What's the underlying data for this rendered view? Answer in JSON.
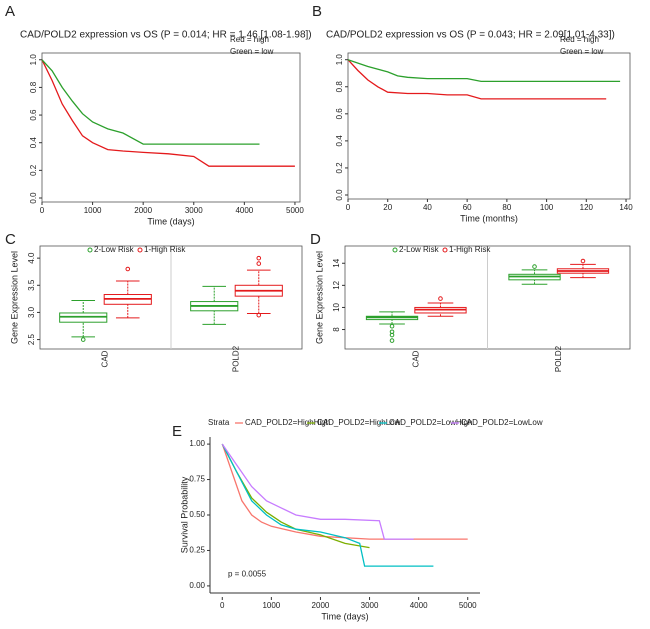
{
  "chart_data": [
    {
      "type": "line",
      "panel": "A",
      "title": "CAD/POLD2 expression vs OS (P = 0.014; HR = 1.46 [1.08-1.98])",
      "x_label": "Time (days)",
      "xlim": [
        0,
        5100
      ],
      "xticks": [
        0,
        1000,
        2000,
        3000,
        4000,
        5000
      ],
      "ylim": [
        0,
        1.02
      ],
      "yticks": [
        {
          "value": 0,
          "label": "0.0"
        },
        0.2,
        0.4,
        0.6,
        0.8,
        {
          "value": 1,
          "label": "1.0"
        }
      ],
      "legend": "top-right",
      "legend_style": "text",
      "series": [
        {
          "name": "Red = high",
          "color": "#e41a1c",
          "x": [
            0,
            200,
            400,
            600,
            800,
            1000,
            1300,
            1600,
            2000,
            2500,
            3000,
            3300,
            4000,
            5000
          ],
          "values": [
            1,
            0.85,
            0.68,
            0.56,
            0.45,
            0.4,
            0.35,
            0.34,
            0.33,
            0.32,
            0.3,
            0.23,
            0.23,
            0.23
          ]
        },
        {
          "name": "Green = low",
          "color": "#2ca02c",
          "x": [
            0,
            200,
            400,
            600,
            800,
            1000,
            1300,
            1600,
            2000,
            2500,
            3000,
            4300
          ],
          "values": [
            1,
            0.92,
            0.8,
            0.7,
            0.61,
            0.55,
            0.5,
            0.47,
            0.39,
            0.39,
            0.39,
            0.39
          ]
        }
      ]
    },
    {
      "type": "line",
      "panel": "B",
      "title": "CAD/POLD2 expression vs OS (P = 0.043; HR = 2.09[1.01-4.33])",
      "x_label": "Time (months)",
      "xlim": [
        0,
        142
      ],
      "xticks": [
        0,
        20,
        40,
        60,
        80,
        100,
        120,
        140
      ],
      "ylim": [
        0,
        1.02
      ],
      "yticks": [
        {
          "value": 0,
          "label": "0.0"
        },
        0.2,
        0.4,
        0.6,
        0.8,
        {
          "value": 1,
          "label": "1.0"
        }
      ],
      "legend": "top-right",
      "legend_style": "text",
      "series": [
        {
          "name": "Red = high",
          "color": "#e41a1c",
          "x": [
            0,
            5,
            10,
            15,
            20,
            30,
            40,
            50,
            60,
            67,
            80,
            100,
            120,
            130
          ],
          "values": [
            1,
            0.92,
            0.85,
            0.8,
            0.76,
            0.75,
            0.75,
            0.74,
            0.74,
            0.71,
            0.71,
            0.71,
            0.71,
            0.71
          ]
        },
        {
          "name": "Green = low",
          "color": "#2ca02c",
          "x": [
            0,
            10,
            20,
            25,
            30,
            40,
            60,
            67,
            80,
            100,
            120,
            137
          ],
          "values": [
            1,
            0.95,
            0.91,
            0.88,
            0.87,
            0.86,
            0.86,
            0.84,
            0.84,
            0.84,
            0.84,
            0.84
          ]
        }
      ]
    },
    {
      "type": "box",
      "panel": "C",
      "y_label": "Gene Expression Level",
      "categories": [
        "CAD",
        "POLD2"
      ],
      "ylim": [
        2.4,
        4.15
      ],
      "yticks": [
        2.5,
        {
          "value": 3,
          "label": "3.0"
        },
        3.5,
        {
          "value": 4,
          "label": "4.0"
        }
      ],
      "series": [
        {
          "name": "2-Low Risk",
          "color": "#2ca02c",
          "boxes": [
            {
              "min": 2.55,
              "q1": 2.82,
              "median": 2.92,
              "q3": 2.99,
              "max": 3.22,
              "outliers": [
                2.5
              ]
            },
            {
              "min": 2.78,
              "q1": 3.03,
              "median": 3.12,
              "q3": 3.2,
              "max": 3.48,
              "outliers": []
            }
          ]
        },
        {
          "name": "1-High Risk",
          "color": "#e41a1c",
          "boxes": [
            {
              "min": 2.9,
              "q1": 3.15,
              "median": 3.25,
              "q3": 3.33,
              "max": 3.58,
              "outliers": [
                3.8
              ]
            },
            {
              "min": 2.98,
              "q1": 3.3,
              "median": 3.4,
              "q3": 3.5,
              "max": 3.78,
              "outliers": [
                3.9,
                4.0,
                2.95
              ]
            }
          ]
        }
      ]
    },
    {
      "type": "box",
      "panel": "D",
      "y_label": "Gene Expression Level",
      "categories": [
        "CAD",
        "POLD2"
      ],
      "ylim": [
        6.6,
        15.2
      ],
      "yticks": [
        8,
        10,
        12,
        14
      ],
      "series": [
        {
          "name": "2-Low Risk",
          "color": "#2ca02c",
          "boxes": [
            {
              "min": 8.5,
              "q1": 8.9,
              "median": 9.1,
              "q3": 9.2,
              "max": 9.6,
              "outliers": [
                8.3,
                7.8,
                7.5,
                7.0
              ]
            },
            {
              "min": 12.1,
              "q1": 12.5,
              "median": 12.8,
              "q3": 13.0,
              "max": 13.4,
              "outliers": [
                13.7
              ]
            }
          ]
        },
        {
          "name": "1-High Risk",
          "color": "#e41a1c",
          "boxes": [
            {
              "min": 9.2,
              "q1": 9.5,
              "median": 9.8,
              "q3": 10.0,
              "max": 10.4,
              "outliers": [
                10.8
              ]
            },
            {
              "min": 12.7,
              "q1": 13.1,
              "median": 13.3,
              "q3": 13.5,
              "max": 13.9,
              "outliers": [
                14.2
              ]
            }
          ]
        }
      ]
    },
    {
      "type": "line",
      "panel": "E",
      "x_label": "Time (days)",
      "y_label": "Survival Probability",
      "legend_title": "Strata",
      "annotation": "p = 0.0055",
      "xlim": [
        -250,
        5250
      ],
      "xticks": [
        0,
        1000,
        2000,
        3000,
        4000,
        5000
      ],
      "ylim": [
        -0.05,
        1.05
      ],
      "yticks": [
        {
          "value": 0,
          "label": "0.00"
        },
        {
          "value": 0.25,
          "label": "0.25"
        },
        {
          "value": 0.5,
          "label": "0.50"
        },
        {
          "value": 0.75,
          "label": "0.75"
        },
        {
          "value": 1,
          "label": "1.00"
        }
      ],
      "legend": "top",
      "legend_style": "line",
      "series": [
        {
          "name": "CAD_POLD2=HighHigh",
          "color": "#F8766D",
          "x": [
            0,
            200,
            400,
            600,
            800,
            1000,
            1500,
            2000,
            3000,
            4000,
            5000
          ],
          "values": [
            1,
            0.8,
            0.6,
            0.5,
            0.45,
            0.42,
            0.38,
            0.35,
            0.33,
            0.33,
            0.33
          ]
        },
        {
          "name": "CAD_POLD2=HighLow",
          "color": "#7CAE00",
          "x": [
            0,
            300,
            600,
            900,
            1200,
            1500,
            2000,
            2500,
            3000
          ],
          "values": [
            1,
            0.8,
            0.62,
            0.52,
            0.45,
            0.4,
            0.36,
            0.3,
            0.27
          ]
        },
        {
          "name": "CAD_POLD2=LowHigh",
          "color": "#00BFC4",
          "x": [
            0,
            300,
            600,
            900,
            1200,
            1500,
            2000,
            2500,
            2800,
            2900,
            4300
          ],
          "values": [
            1,
            0.8,
            0.6,
            0.5,
            0.43,
            0.4,
            0.38,
            0.34,
            0.3,
            0.14,
            0.14
          ]
        },
        {
          "name": "CAD_POLD2=LowLow",
          "color": "#C77CFF",
          "x": [
            0,
            300,
            600,
            900,
            1200,
            1500,
            2000,
            2500,
            3200,
            3300,
            3900
          ],
          "values": [
            1,
            0.85,
            0.7,
            0.6,
            0.55,
            0.5,
            0.47,
            0.47,
            0.46,
            0.33,
            0.33
          ]
        }
      ]
    }
  ]
}
